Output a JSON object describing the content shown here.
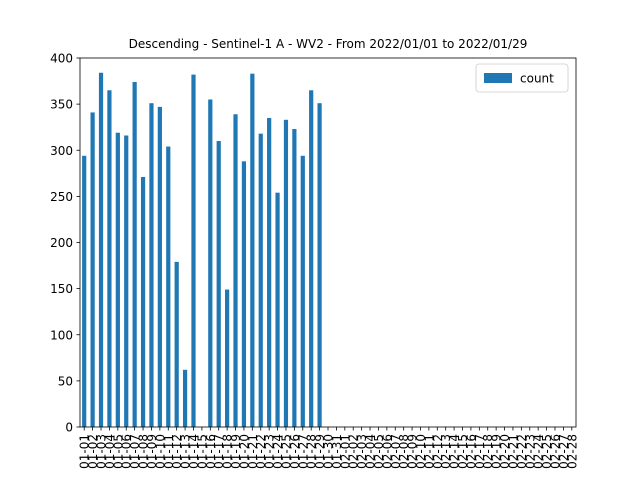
{
  "chart_data": {
    "type": "bar",
    "title": "Descending - Sentinel-1 A - WV2 - From 2022/01/01 to 2022/01/29",
    "xlabel": "",
    "ylabel": "",
    "ylim": [
      0,
      400
    ],
    "yticks": [
      0,
      50,
      100,
      150,
      200,
      250,
      300,
      350,
      400
    ],
    "grid": false,
    "legend_position": "top-right",
    "categories": [
      "01-01",
      "01-02",
      "01-03",
      "01-04",
      "01-05",
      "01-06",
      "01-07",
      "01-08",
      "01-09",
      "01-10",
      "01-11",
      "01-12",
      "01-13",
      "01-14",
      "01-15",
      "01-16",
      "01-17",
      "01-18",
      "01-19",
      "01-20",
      "01-21",
      "01-22",
      "01-23",
      "01-24",
      "01-25",
      "01-26",
      "01-27",
      "01-28",
      "01-29",
      "01-30",
      "01-31",
      "02-01",
      "02-02",
      "02-03",
      "02-04",
      "02-05",
      "02-06",
      "02-07",
      "02-08",
      "02-09",
      "02-10",
      "02-11",
      "02-12",
      "02-13",
      "02-14",
      "02-15",
      "02-16",
      "02-17",
      "02-18",
      "02-19",
      "02-20",
      "02-21",
      "02-22",
      "02-23",
      "02-24",
      "02-25",
      "02-26",
      "02-27",
      "02-28"
    ],
    "series": [
      {
        "name": "count",
        "color": "#1f77b4",
        "values": [
          294,
          341,
          384,
          365,
          319,
          316,
          374,
          271,
          351,
          347,
          304,
          179,
          62,
          382,
          0,
          355,
          310,
          149,
          339,
          288,
          383,
          318,
          335,
          254,
          333,
          323,
          294,
          365,
          351,
          0,
          0,
          0,
          0,
          0,
          0,
          0,
          0,
          0,
          0,
          0,
          0,
          0,
          0,
          0,
          0,
          0,
          0,
          0,
          0,
          0,
          0,
          0,
          0,
          0,
          0,
          0,
          0,
          0,
          0
        ]
      }
    ]
  }
}
